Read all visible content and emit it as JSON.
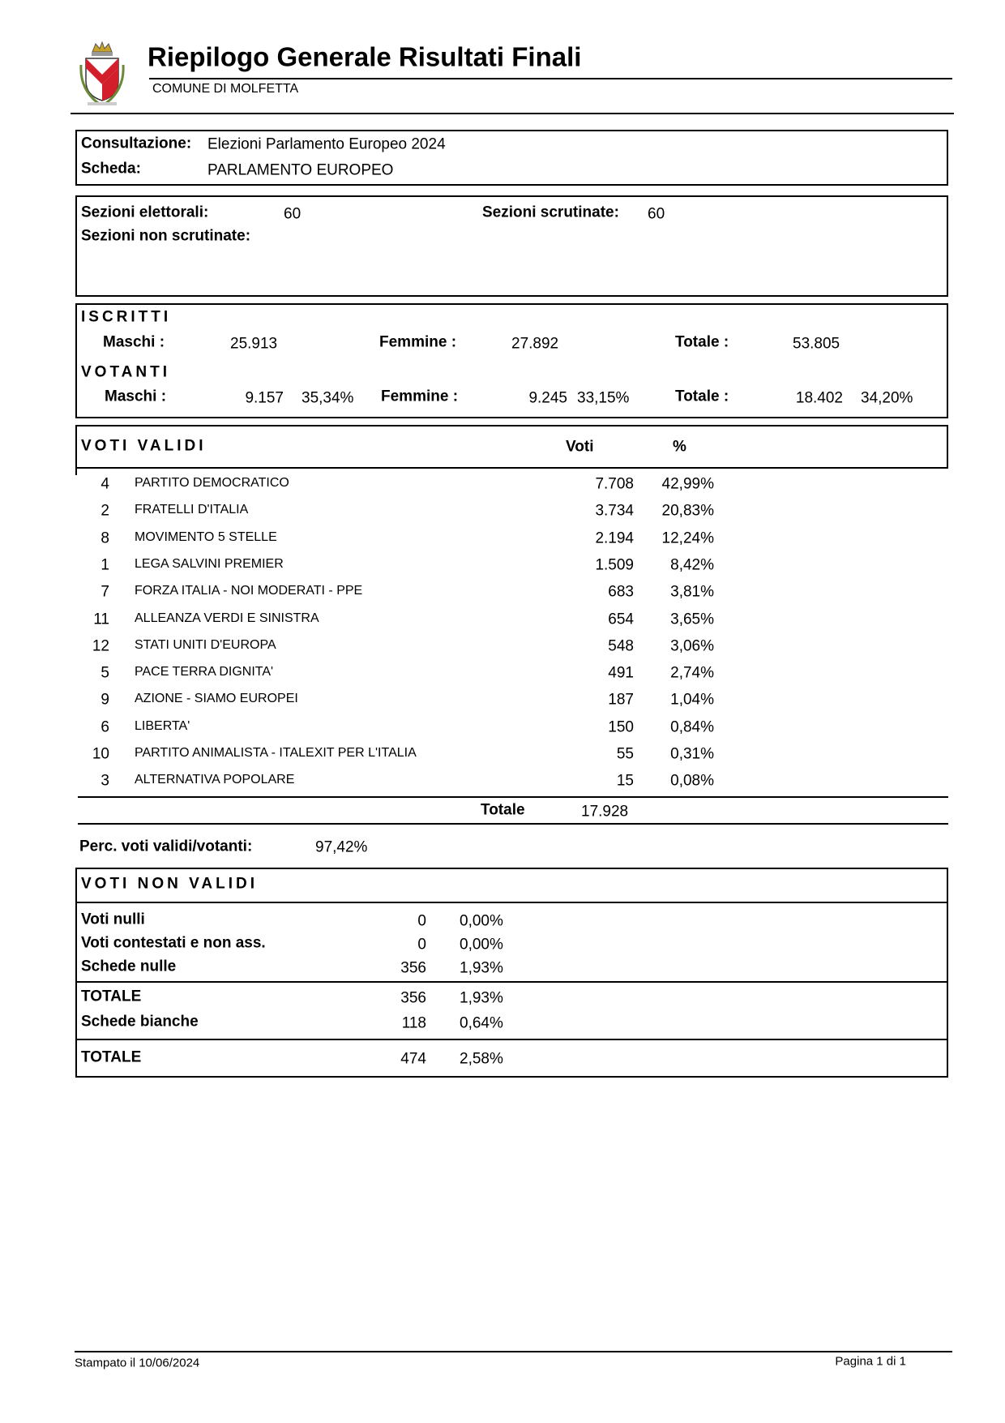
{
  "header": {
    "title": "Riepilogo Generale Risultati Finali",
    "subtitle": "COMUNE DI MOLFETTA"
  },
  "consultazione": {
    "label": "Consultazione:",
    "value": "Elezioni Parlamento Europeo 2024"
  },
  "scheda": {
    "label": "Scheda:",
    "value": "PARLAMENTO EUROPEO"
  },
  "sezioni": {
    "elettorali_label": "Sezioni elettorali:",
    "elettorali": "60",
    "scrutinate_label": "Sezioni scrutinate:",
    "scrutinate": "60",
    "non_scrutinate_label": "Sezioni non scrutinate:"
  },
  "iscritti": {
    "heading": "ISCRITTI",
    "maschi_label": "Maschi :",
    "maschi": "25.913",
    "femmine_label": "Femmine :",
    "femmine": "27.892",
    "totale_label": "Totale :",
    "totale": "53.805"
  },
  "votanti": {
    "heading": "VOTANTI",
    "maschi_label": "Maschi :",
    "maschi": "9.157",
    "maschi_pct": "35,34%",
    "femmine_label": "Femmine :",
    "femmine": "9.245",
    "femmine_pct": "33,15%",
    "totale_label": "Totale :",
    "totale": "18.402",
    "totale_pct": "34,20%"
  },
  "voti_validi": {
    "heading": "VOTI VALIDI",
    "col_voti": "Voti",
    "col_pct": "%",
    "rows": [
      [
        "4",
        "PARTITO DEMOCRATICO",
        "7.708",
        "42,99%"
      ],
      [
        "2",
        "FRATELLI D'ITALIA",
        "3.734",
        "20,83%"
      ],
      [
        "8",
        "MOVIMENTO 5 STELLE",
        "2.194",
        "12,24%"
      ],
      [
        "1",
        "LEGA SALVINI PREMIER",
        "1.509",
        "8,42%"
      ],
      [
        "7",
        "FORZA ITALIA - NOI MODERATI - PPE",
        "683",
        "3,81%"
      ],
      [
        "11",
        "ALLEANZA VERDI E SINISTRA",
        "654",
        "3,65%"
      ],
      [
        "12",
        "STATI UNITI D'EUROPA",
        "548",
        "3,06%"
      ],
      [
        "5",
        "PACE TERRA DIGNITA'",
        "491",
        "2,74%"
      ],
      [
        "9",
        "AZIONE - SIAMO EUROPEI",
        "187",
        "1,04%"
      ],
      [
        "6",
        "LIBERTA'",
        "150",
        "0,84%"
      ],
      [
        "10",
        "PARTITO ANIMALISTA - ITALEXIT PER L'ITALIA",
        "55",
        "0,31%"
      ],
      [
        "3",
        "ALTERNATIVA POPOLARE",
        "15",
        "0,08%"
      ]
    ],
    "totale_label": "Totale",
    "totale": "17.928"
  },
  "perc_validi": {
    "label": "Perc. voti validi/votanti:",
    "value": "97,42%"
  },
  "voti_non_validi": {
    "heading": "VOTI NON VALIDI",
    "rows": [
      [
        "Voti nulli",
        "0",
        "0,00%"
      ],
      [
        "Voti contestati e non ass.",
        "0",
        "0,00%"
      ],
      [
        "Schede nulle",
        "356",
        "1,93%"
      ],
      [
        "TOTALE",
        "356",
        "1,93%"
      ],
      [
        "Schede bianche",
        "118",
        "0,64%"
      ],
      [
        "TOTALE",
        "474",
        "2,58%"
      ]
    ]
  },
  "footer": {
    "printed": "Stampato il 10/06/2024",
    "page": "Pagina 1 di 1"
  }
}
